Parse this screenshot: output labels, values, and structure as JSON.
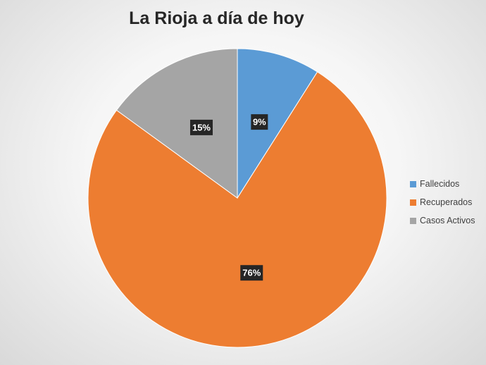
{
  "chart_data": {
    "type": "pie",
    "title": "La Rioja a día de hoy",
    "categories": [
      "Fallecidos",
      "Recuperados",
      "Casos Activos"
    ],
    "values": [
      9,
      76,
      15
    ],
    "data_labels": [
      "9%",
      "76%",
      "15%"
    ],
    "colors": [
      "#5b9bd5",
      "#ed7d31",
      "#a5a5a5"
    ],
    "legend_position": "right"
  }
}
